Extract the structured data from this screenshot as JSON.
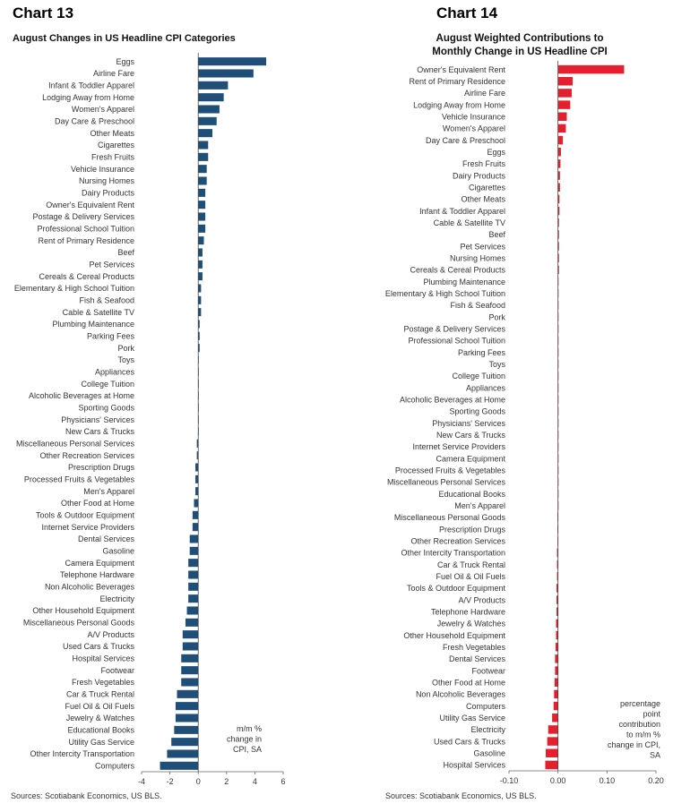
{
  "charts": [
    {
      "number": "Chart 13",
      "title": "August Changes in US Headline CPI Categories",
      "source": "Sources: Scotiabank Economics, US BLS.",
      "unit_note": [
        "m/m %",
        "change in",
        "CPI, SA"
      ],
      "color": "#1f4e79"
    },
    {
      "number": "Chart 14",
      "title_lines": [
        "August Weighted Contributions to",
        "Monthly Change in US Headline CPI"
      ],
      "source": "Sources: Scotiabank Economics, US BLS.",
      "unit_note": [
        "percentage",
        "point",
        "contribution",
        "to m/m %",
        "change in CPI,",
        "SA"
      ],
      "color": "#e5202e"
    }
  ],
  "chart_data": [
    {
      "type": "bar",
      "orientation": "horizontal",
      "title": "August Changes in US Headline CPI Categories",
      "xlabel": "m/m % change in CPI, SA",
      "xlim": [
        -4,
        6
      ],
      "xticks": [
        -4,
        -2,
        0,
        2,
        4,
        6
      ],
      "tick_labels": [
        "-4",
        "-2",
        "0",
        "2",
        "4",
        "6"
      ],
      "categories": [
        "Eggs",
        "Airline Fare",
        "Infant & Toddler Apparel",
        "Lodging Away from Home",
        "Women's Apparel",
        "Day Care & Preschool",
        "Other Meats",
        "Cigarettes",
        "Fresh Fruits",
        "Vehicle Insurance",
        "Nursing Homes",
        "Dairy Products",
        "Owner's Equivalent Rent",
        "Postage & Delivery Services",
        "Professional School Tuition",
        "Rent of Primary Residence",
        "Beef",
        "Pet Services",
        "Cereals & Cereal Products",
        "Elementary & High School Tuition",
        "Fish & Seafood",
        "Cable & Satellite TV",
        "Plumbing Maintenance",
        "Parking Fees",
        "Pork",
        "Toys",
        "Appliances",
        "College Tuition",
        "Alcoholic Beverages at Home",
        "Sporting Goods",
        "Physicians' Services",
        "New Cars & Trucks",
        "Miscellaneous Personal Services",
        "Other Recreation Services",
        "Prescription Drugs",
        "Processed Fruits & Vegetables",
        "Men's Apparel",
        "Other Food at Home",
        "Tools & Outdoor Equipment",
        "Internet Service Providers",
        "Dental Services",
        "Gasoline",
        "Camera Equipment",
        "Telephone Hardware",
        "Non Alcoholic Beverages",
        "Electricity",
        "Other Household Equipment",
        "Miscellaneous Personal Goods",
        "A/V Products",
        "Used Cars & Trucks",
        "Hospital Services",
        "Footwear",
        "Fresh Vegetables",
        "Car & Truck Rental",
        "Fuel Oil & Oil Fuels",
        "Jewelry & Watches",
        "Educational Books",
        "Utility Gas Service",
        "Other Intercity Transportation",
        "Computers"
      ],
      "values": [
        4.8,
        3.9,
        2.1,
        1.8,
        1.5,
        1.3,
        1.0,
        0.7,
        0.7,
        0.6,
        0.6,
        0.5,
        0.5,
        0.5,
        0.5,
        0.4,
        0.3,
        0.3,
        0.3,
        0.2,
        0.2,
        0.2,
        0.1,
        0.1,
        0.1,
        0.0,
        0.0,
        0.0,
        0.0,
        0.0,
        0.0,
        0.0,
        -0.1,
        -0.1,
        -0.2,
        -0.2,
        -0.2,
        -0.3,
        -0.4,
        -0.4,
        -0.6,
        -0.6,
        -0.7,
        -0.7,
        -0.7,
        -0.7,
        -0.8,
        -0.9,
        -1.1,
        -1.1,
        -1.2,
        -1.2,
        -1.2,
        -1.5,
        -1.6,
        -1.6,
        -1.7,
        -1.9,
        -2.2,
        -2.7
      ]
    },
    {
      "type": "bar",
      "orientation": "horizontal",
      "title": "August Weighted Contributions to Monthly Change in US Headline CPI",
      "xlabel": "percentage point contribution to m/m % change in CPI, SA",
      "xlim": [
        -0.1,
        0.2
      ],
      "xticks": [
        -0.1,
        0.0,
        0.1,
        0.2
      ],
      "tick_labels": [
        "-0.10",
        "0.00",
        "0.10",
        "0.20"
      ],
      "categories": [
        "Owner's Equivalent Rent",
        "Rent of Primary Residence",
        "Airline Fare",
        "Lodging Away from Home",
        "Vehicle Insurance",
        "Women's Apparel",
        "Day Care & Preschool",
        "Eggs",
        "Fresh Fruits",
        "Dairy Products",
        "Cigarettes",
        "Other Meats",
        "Infant & Toddler Apparel",
        "Cable & Satellite TV",
        "Beef",
        "Pet Services",
        "Nursing Homes",
        "Cereals & Cereal Products",
        "Plumbing Maintenance",
        "Elementary & High School Tuition",
        "Fish & Seafood",
        "Pork",
        "Postage & Delivery Services",
        "Professional School Tuition",
        "Parking Fees",
        "Toys",
        "College Tuition",
        "Appliances",
        "Alcoholic Beverages at Home",
        "Sporting Goods",
        "Physicians' Services",
        "New Cars & Trucks",
        "Internet Service Providers",
        "Camera Equipment",
        "Processed Fruits & Vegetables",
        "Miscellaneous Personal Services",
        "Educational Books",
        "Men's Apparel",
        "Miscellaneous Personal Goods",
        "Prescription Drugs",
        "Other Recreation Services",
        "Other Intercity Transportation",
        "Car & Truck Rental",
        "Fuel Oil & Oil Fuels",
        "Tools & Outdoor Equipment",
        "A/V Products",
        "Telephone Hardware",
        "Jewelry & Watches",
        "Other Household Equipment",
        "Fresh Vegetables",
        "Dental Services",
        "Footwear",
        "Other Food at Home",
        "Non Alcoholic Beverages",
        "Computers",
        "Utility Gas Service",
        "Electricity",
        "Used Cars & Trucks",
        "Gasoline",
        "Hospital Services"
      ],
      "values": [
        0.135,
        0.03,
        0.028,
        0.025,
        0.018,
        0.016,
        0.01,
        0.006,
        0.005,
        0.004,
        0.004,
        0.003,
        0.003,
        0.002,
        0.002,
        0.002,
        0.002,
        0.002,
        0.001,
        0.001,
        0.001,
        0.001,
        0.001,
        0.001,
        0.0,
        0.0,
        0.0,
        0.0,
        0.0,
        0.0,
        0.0,
        0.0,
        0.0,
        0.0,
        0.0,
        0.0,
        0.0,
        0.0,
        -0.001,
        -0.001,
        -0.001,
        -0.002,
        -0.002,
        -0.002,
        -0.003,
        -0.003,
        -0.003,
        -0.004,
        -0.004,
        -0.005,
        -0.006,
        -0.006,
        -0.007,
        -0.008,
        -0.009,
        -0.012,
        -0.02,
        -0.022,
        -0.025,
        -0.026
      ]
    }
  ]
}
